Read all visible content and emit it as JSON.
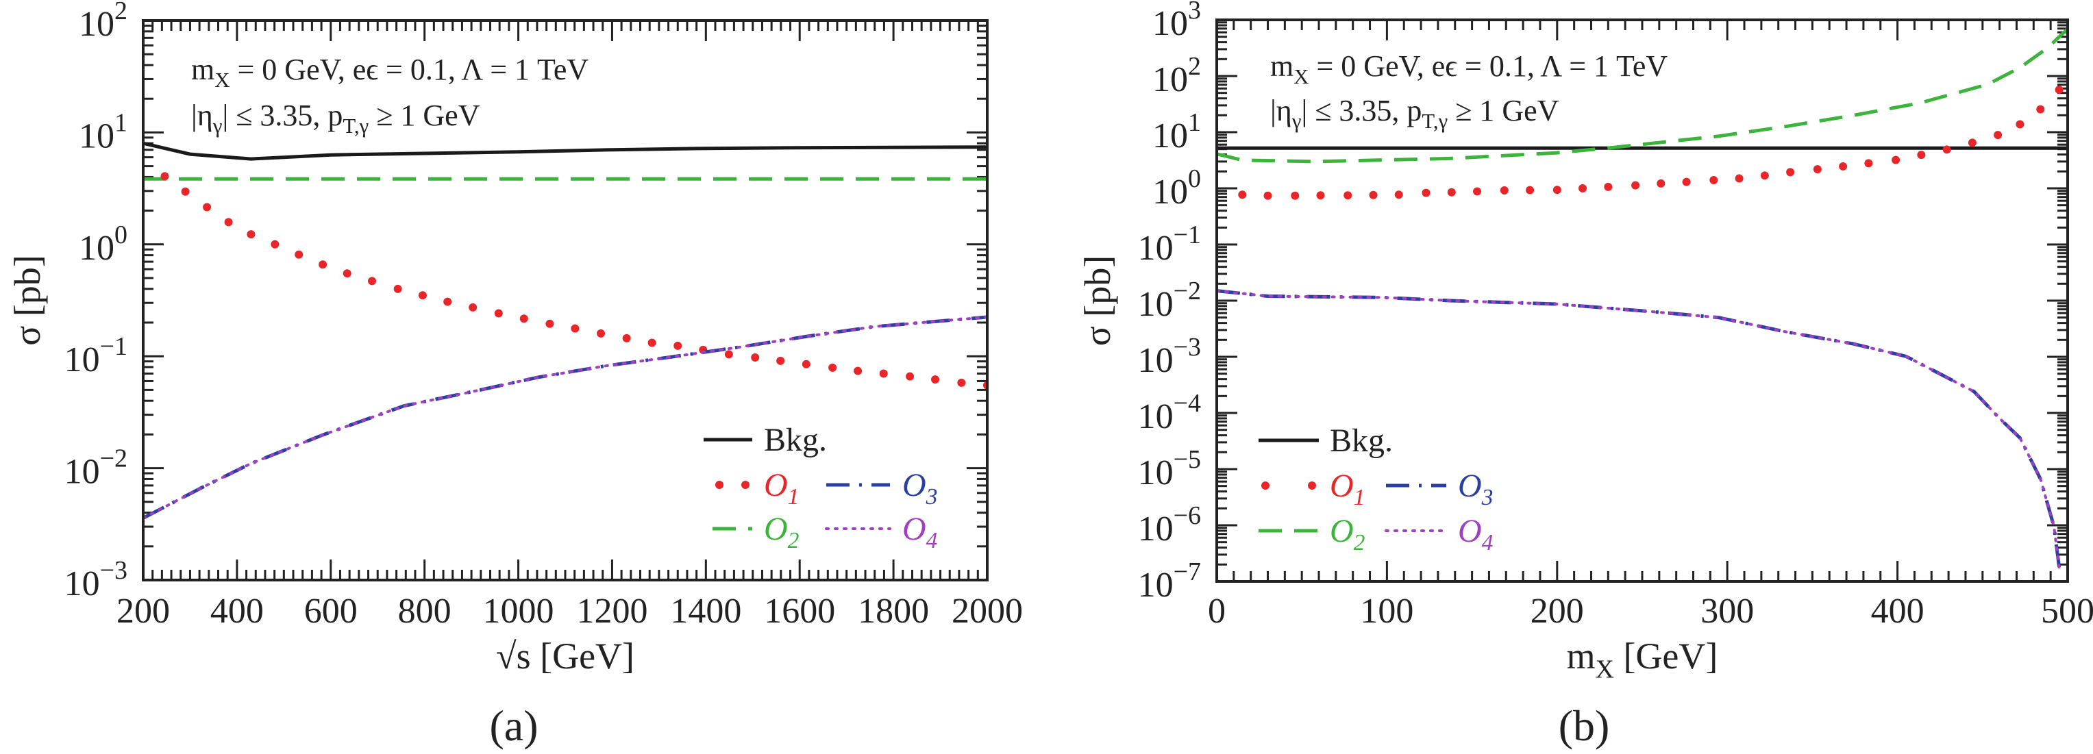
{
  "colors": {
    "bkg": "#1a1a1a",
    "O1": "#e8262a",
    "O2": "#3cb43c",
    "O3": "#2b3fa0",
    "O4": "#a040c0"
  },
  "chart_data": [
    {
      "type": "line",
      "panel_label": "(a)",
      "xlabel": "√s [GeV]",
      "ylabel": "σ [pb]",
      "xlim": [
        200,
        2000
      ],
      "ylim": [
        0.001,
        100
      ],
      "yscale": "log",
      "xticks": [
        200,
        400,
        600,
        800,
        1000,
        1200,
        1400,
        1600,
        1800,
        2000
      ],
      "yticks_exp": [
        "−3",
        "−2",
        "−1",
        "0",
        "1",
        "2"
      ],
      "annotation": [
        [
          {
            "t": "m"
          },
          {
            "sub": "X"
          },
          {
            "t": " = 0 GeV, eϵ = 0.1, Λ = 1 TeV"
          }
        ],
        [
          {
            "t": "|η"
          },
          {
            "sub": "γ"
          },
          {
            "t": "| ≤ 3.35,  p"
          },
          {
            "sub": "T,γ"
          },
          {
            "t": " ≥ 1 GeV"
          }
        ]
      ],
      "legend_placement": "lower-right",
      "series": [
        {
          "key": "bkg",
          "name": "Bkg.",
          "style": "solid",
          "x": [
            200,
            300,
            430,
            600,
            800,
            1000,
            1200,
            1400,
            1600,
            1800,
            2000
          ],
          "y": [
            8.0,
            6.4,
            5.8,
            6.3,
            6.5,
            6.7,
            7.0,
            7.2,
            7.3,
            7.35,
            7.4
          ]
        },
        {
          "key": "O2",
          "name": "O",
          "sub": "2",
          "style": "dashed",
          "x": [
            200,
            2000
          ],
          "y": [
            3.84,
            3.84
          ]
        },
        {
          "key": "O1",
          "name": "O",
          "sub": "1",
          "style": "dots",
          "x": [
            246,
            290,
            336,
            382,
            430,
            481,
            532,
            583,
            635,
            688,
            743,
            796,
            849,
            903,
            958,
            1012,
            1067,
            1121,
            1176,
            1231,
            1285,
            1340,
            1394,
            1449,
            1505,
            1559,
            1614,
            1670,
            1724,
            1779,
            1835,
            1889,
            1945,
            2000
          ],
          "y": [
            4.06,
            2.96,
            2.15,
            1.58,
            1.23,
            1.0,
            0.81,
            0.66,
            0.55,
            0.47,
            0.4,
            0.35,
            0.307,
            0.273,
            0.242,
            0.217,
            0.195,
            0.177,
            0.16,
            0.145,
            0.132,
            0.124,
            0.114,
            0.104,
            0.0975,
            0.091,
            0.085,
            0.079,
            0.074,
            0.07,
            0.066,
            0.062,
            0.058,
            0.055
          ]
        },
        {
          "key": "O3",
          "name": "O",
          "sub": "3",
          "style": "dashdot",
          "x": [
            200,
            325,
            430,
            583,
            756,
            899,
            1043,
            1186,
            1330,
            1473,
            1617,
            1760,
            2000
          ],
          "y": [
            0.00358,
            0.0067,
            0.011,
            0.0198,
            0.036,
            0.048,
            0.065,
            0.082,
            0.099,
            0.121,
            0.151,
            0.184,
            0.224
          ]
        },
        {
          "key": "O4",
          "name": "O",
          "sub": "4",
          "style": "dotted",
          "x": [
            200,
            325,
            430,
            583,
            756,
            899,
            1043,
            1186,
            1330,
            1473,
            1617,
            1760,
            2000
          ],
          "y": [
            0.00358,
            0.0067,
            0.011,
            0.0198,
            0.036,
            0.048,
            0.065,
            0.082,
            0.099,
            0.121,
            0.151,
            0.184,
            0.224
          ]
        }
      ]
    },
    {
      "type": "line",
      "panel_label": "(b)",
      "xlabel": "m_X [GeV]",
      "xlabel_parts": [
        {
          "t": "m"
        },
        {
          "sub": "X"
        },
        {
          "t": " [GeV]"
        }
      ],
      "ylabel": "σ [pb]",
      "xlim": [
        0,
        500
      ],
      "ylim": [
        1e-07,
        1000
      ],
      "yscale": "log",
      "xticks": [
        0,
        100,
        200,
        300,
        400,
        500
      ],
      "yticks_exp": [
        "−7",
        "−6",
        "−5",
        "−4",
        "−3",
        "−2",
        "−1",
        "0",
        "1",
        "2",
        "3"
      ],
      "annotation": [
        [
          {
            "t": "m"
          },
          {
            "sub": "X"
          },
          {
            "t": " = 0 GeV, eϵ = 0.1, Λ = 1 TeV"
          }
        ],
        [
          {
            "t": "|η"
          },
          {
            "sub": "γ"
          },
          {
            "t": "| ≤ 3.35,  p"
          },
          {
            "sub": "T,γ"
          },
          {
            "t": " ≥ 1 GeV"
          }
        ]
      ],
      "legend_placement": "lower-left",
      "series": [
        {
          "key": "bkg",
          "name": "Bkg.",
          "style": "solid",
          "x": [
            0,
            500
          ],
          "y": [
            5.2,
            5.2
          ]
        },
        {
          "key": "O2",
          "name": "O",
          "sub": "2",
          "style": "dashed",
          "x": [
            0,
            15,
            58,
            137,
            200,
            232,
            295,
            334,
            374,
            413,
            453,
            472,
            488,
            500
          ],
          "y": [
            4.1,
            3.18,
            3.0,
            3.4,
            4.3,
            5.3,
            8.5,
            12.6,
            19.9,
            33,
            71,
            141,
            314,
            690
          ]
        },
        {
          "key": "O1",
          "name": "O",
          "sub": "1",
          "style": "dots",
          "x": [
            15,
            30,
            46,
            61,
            77,
            92,
            107,
            123,
            138,
            153,
            169,
            184,
            200,
            215,
            230,
            246,
            261,
            276,
            292,
            307,
            322,
            337,
            353,
            368,
            383,
            399,
            414,
            429,
            444,
            459,
            472,
            484,
            495
          ],
          "y": [
            0.77,
            0.74,
            0.74,
            0.75,
            0.75,
            0.76,
            0.77,
            0.83,
            0.85,
            0.88,
            0.92,
            0.93,
            0.94,
            1.0,
            1.06,
            1.13,
            1.22,
            1.3,
            1.4,
            1.5,
            1.69,
            1.94,
            2.19,
            2.46,
            2.8,
            3.2,
            3.95,
            4.9,
            6.5,
            8.9,
            13.8,
            25.5,
            57
          ]
        },
        {
          "key": "O3",
          "name": "O",
          "sub": "3",
          "style": "dashdot",
          "x": [
            0,
            30,
            97,
            137,
            200,
            255,
            295,
            334,
            374,
            405,
            429,
            445,
            460,
            472,
            484,
            492,
            495
          ],
          "y": [
            0.015,
            0.012,
            0.0114,
            0.01,
            0.0087,
            0.0064,
            0.005,
            0.0028,
            0.0017,
            0.00102,
            0.00043,
            0.00024,
            8e-05,
            3.6e-05,
            6.7e-06,
            9.4e-07,
            1.8e-07
          ]
        },
        {
          "key": "O4",
          "name": "O",
          "sub": "4",
          "style": "dotted",
          "x": [
            0,
            30,
            97,
            137,
            200,
            255,
            295,
            334,
            374,
            405,
            429,
            445,
            460,
            472,
            484,
            492,
            495
          ],
          "y": [
            0.015,
            0.012,
            0.0114,
            0.01,
            0.0087,
            0.0064,
            0.005,
            0.0028,
            0.0017,
            0.00102,
            0.00043,
            0.00024,
            8e-05,
            3.6e-05,
            6.7e-06,
            9.4e-07,
            1.8e-07
          ]
        }
      ]
    }
  ]
}
